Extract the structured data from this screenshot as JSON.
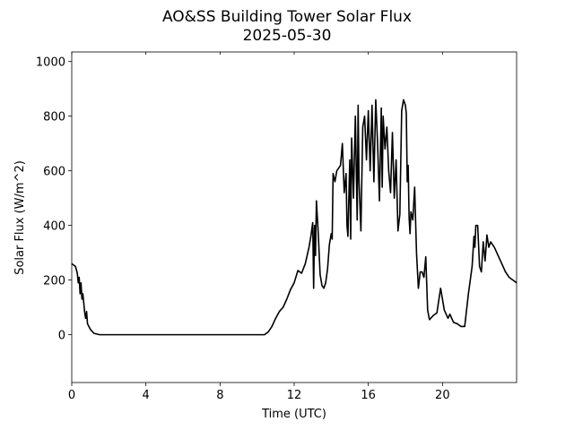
{
  "chart_data": {
    "type": "line",
    "title": "AO&SS Building Tower Solar Flux",
    "subtitle": "2025-05-30",
    "xlabel": "Time (UTC)",
    "ylabel": "Solar Flux (W/m^2)",
    "xlim": [
      0,
      24
    ],
    "xticks": [
      0,
      4,
      8,
      12,
      16,
      20
    ],
    "ylim": [
      -175,
      1035
    ],
    "yticks": [
      0,
      200,
      400,
      600,
      800,
      1000
    ],
    "grid": false,
    "series": [
      {
        "name": "Solar Flux",
        "color": "#000000",
        "x": [
          0,
          0.2,
          0.3,
          0.35,
          0.4,
          0.45,
          0.5,
          0.55,
          0.6,
          0.7,
          0.75,
          0.8,
          0.85,
          1.0,
          1.2,
          1.5,
          10.4,
          10.6,
          10.8,
          11.0,
          11.2,
          11.4,
          11.6,
          11.8,
          12.0,
          12.2,
          12.4,
          12.6,
          12.8,
          12.9,
          13.0,
          13.05,
          13.1,
          13.15,
          13.2,
          13.3,
          13.4,
          13.5,
          13.6,
          13.7,
          13.8,
          13.9,
          14.0,
          14.05,
          14.1,
          14.2,
          14.3,
          14.5,
          14.6,
          14.7,
          14.8,
          14.85,
          14.9,
          15.0,
          15.05,
          15.1,
          15.2,
          15.3,
          15.4,
          15.45,
          15.5,
          15.6,
          15.7,
          15.8,
          15.9,
          16.0,
          16.1,
          16.2,
          16.3,
          16.4,
          16.5,
          16.6,
          16.7,
          16.75,
          16.8,
          16.9,
          17.0,
          17.1,
          17.2,
          17.3,
          17.4,
          17.5,
          17.6,
          17.7,
          17.8,
          17.9,
          18.0,
          18.05,
          18.1,
          18.15,
          18.2,
          18.25,
          18.3,
          18.4,
          18.5,
          18.6,
          18.7,
          18.8,
          18.9,
          19.0,
          19.1,
          19.2,
          19.3,
          19.5,
          19.7,
          19.9,
          20.1,
          20.3,
          20.4,
          20.6,
          20.8,
          21.0,
          21.2,
          21.4,
          21.6,
          21.7,
          21.75,
          21.8,
          21.9,
          22.0,
          22.1,
          22.2,
          22.3,
          22.4,
          22.5,
          22.6,
          22.8,
          23.0,
          23.2,
          23.4,
          23.6,
          23.8,
          24.0
        ],
        "values": [
          260,
          250,
          225,
          190,
          210,
          150,
          190,
          130,
          150,
          80,
          60,
          85,
          40,
          20,
          5,
          0,
          0,
          10,
          30,
          60,
          85,
          100,
          130,
          165,
          190,
          235,
          225,
          260,
          320,
          360,
          410,
          170,
          400,
          290,
          490,
          370,
          220,
          180,
          170,
          190,
          240,
          330,
          370,
          350,
          590,
          560,
          600,
          620,
          700,
          520,
          590,
          400,
          360,
          640,
          350,
          720,
          500,
          800,
          420,
          840,
          560,
          380,
          760,
          800,
          640,
          820,
          600,
          840,
          560,
          860,
          700,
          490,
          830,
          540,
          800,
          680,
          760,
          600,
          520,
          740,
          500,
          640,
          380,
          440,
          820,
          860,
          840,
          810,
          560,
          620,
          430,
          370,
          450,
          420,
          540,
          300,
          170,
          230,
          230,
          210,
          285,
          90,
          55,
          70,
          80,
          170,
          90,
          60,
          75,
          45,
          40,
          30,
          30,
          150,
          250,
          360,
          320,
          400,
          400,
          250,
          230,
          340,
          270,
          365,
          320,
          340,
          320,
          290,
          260,
          230,
          210,
          200,
          190
        ]
      }
    ]
  }
}
